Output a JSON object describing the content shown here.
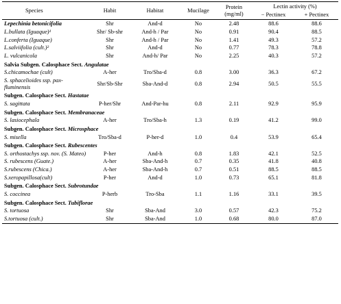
{
  "headers": {
    "species": "Species",
    "habit": "Habit",
    "habitat": "Habitat",
    "mucilage": "Mucilage",
    "protein": "Protein",
    "protein_unit": "(mg/ml)",
    "lectin": "Lectin activity  (%)",
    "minus": "−  Pectinex",
    "plus": "+  Pectinex"
  },
  "rows": [
    {
      "type": "data",
      "species": "Lepechinia betonicifolia",
      "italic": true,
      "bold": true,
      "habit": "Shr",
      "habitat": "And-d",
      "mucilage": "No",
      "protein": "2.48",
      "minus": "88.6",
      "plus": "88.6"
    },
    {
      "type": "data",
      "species": "L.bullata (Iguaque)¹",
      "italic": true,
      "habit": "Shr/ Sb-shr",
      "habitat": "And-h / Par",
      "mucilage": "No",
      "protein": "0.91",
      "minus": "90.4",
      "plus": "88.5"
    },
    {
      "type": "data",
      "species": "L.conferta (Iguaque)",
      "italic": true,
      "habit": "Shr",
      "habitat": "And-h / Par",
      "mucilage": "No",
      "protein": "1.41",
      "minus": "49.3",
      "plus": "57.2"
    },
    {
      "type": "data",
      "species": "L.salviifolia (cult.)²",
      "italic": true,
      "habit": "Shr",
      "habitat": "And-d",
      "mucilage": "No",
      "protein": "0.77",
      "minus": "78.3",
      "plus": "78.8"
    },
    {
      "type": "data",
      "species": "L. vulcanicola",
      "italic": true,
      "habit": "Shr",
      "habitat": "And-h/ Par",
      "mucilage": "No",
      "protein": "2.25",
      "minus": "40.3",
      "plus": "57.2"
    },
    {
      "type": "section",
      "prefix": "Salvia  Subgen. Calosphace Sect. ",
      "name": "Angulatae"
    },
    {
      "type": "data",
      "species": "S.chicamochae (cult)",
      "italic": true,
      "habit": "A-her",
      "habitat": "Tro/Sba-d",
      "mucilage": "0.8",
      "protein": "3.00",
      "minus": "36.3",
      "plus": "67.2"
    },
    {
      "type": "data",
      "species": "S. sphacelioides ssp. pax-fluminensis",
      "italic": true,
      "habit": "Shr/Sb-Shr",
      "habitat": "Sba-And-d",
      "mucilage": "0.8",
      "protein": "2.94",
      "minus": "50.5",
      "plus": "55.5"
    },
    {
      "type": "section",
      "prefix": "Subgen. Calosphace Sect. ",
      "name": "Hastatae"
    },
    {
      "type": "data",
      "species": " S. sagittata",
      "italic": true,
      "habit": "P-her/Shr",
      "habitat": "And-Par-hu",
      "mucilage": "0.8",
      "protein": "2.11",
      "minus": "92.9",
      "plus": "95.9"
    },
    {
      "type": "section",
      "prefix": "Subgen. Calosphace Sect. ",
      "name": "Membranaceae"
    },
    {
      "type": "data",
      "species": "S. lasiocephala",
      "italic": true,
      "habit": "A-her",
      "habitat": "Tro/Sba-h",
      "mucilage": "1.3",
      "protein": "0.19",
      "minus": "41.2",
      "plus": "99.0"
    },
    {
      "type": "section",
      "prefix": "Subgen. Calosphace Sect. ",
      "name": "Microsphace"
    },
    {
      "type": "data",
      "species": "S. misella",
      "italic": true,
      "habit": "Tro/Sba-d",
      "habitat": "P-her-d",
      "mucilage": "1.0",
      "protein": "0.4",
      "minus": "53.9",
      "plus": "65.4"
    },
    {
      "type": "section",
      "prefix": "Subgen. Calosphace Sect. ",
      "name": "Rubescentes"
    },
    {
      "type": "data",
      "species": "S. orthostachys ssp. nov. (S. Mateo)",
      "italic": true,
      "habit": "P-her",
      "habitat": "And-h",
      "mucilage": "0.8",
      "protein": "1.83",
      "minus": "42.1",
      "plus": "52.5"
    },
    {
      "type": "data",
      "species": "S. rubescens (Guate.)",
      "italic": true,
      "habit": "A-her",
      "habitat": "Sba-And-h",
      "mucilage": "0.7",
      "protein": "0.35",
      "minus": "41.8",
      "plus": "40.8"
    },
    {
      "type": "data",
      "species": "S.rubescens (Chica.)",
      "italic": true,
      "habit": "A-her",
      "habitat": "Sba-And-h",
      "mucilage": "0.7",
      "protein": "0.51",
      "minus": "88.5",
      "plus": "88.5"
    },
    {
      "type": "data",
      "species": "S.xeropapillosa(cult)",
      "italic": true,
      "habit": "P-her",
      "habitat": "And-d",
      "mucilage": "1.0",
      "protein": "0.73",
      "minus": "65.1",
      "plus": "81.8"
    },
    {
      "type": "section",
      "prefix": "Subgen. Calosphace Sect. ",
      "name": "Subrotundae"
    },
    {
      "type": "data",
      "species": "S. coccinea",
      "italic": true,
      "habit": "P-herb",
      "habitat": "Tro-Sba",
      "mucilage": "1.1",
      "protein": "1.16",
      "minus": "33.1",
      "plus": "39.5"
    },
    {
      "type": "section",
      "prefix": "Subgen. Calosphace Sect. ",
      "name": "Tubiflorae"
    },
    {
      "type": "data",
      "species": "S. tortuosa",
      "italic": true,
      "habit": "Shr",
      "habitat": "Sba-And",
      "mucilage": "3.0",
      "protein": "0.57",
      "minus": "42.3",
      "plus": "75.2"
    },
    {
      "type": "data",
      "species": "S.tortuosa (cult.)",
      "italic": true,
      "habit": "Shr",
      "habitat": "Sba-And",
      "mucilage": "1.0",
      "protein": "0.68",
      "minus": "80.0",
      "plus": "87.0"
    }
  ]
}
